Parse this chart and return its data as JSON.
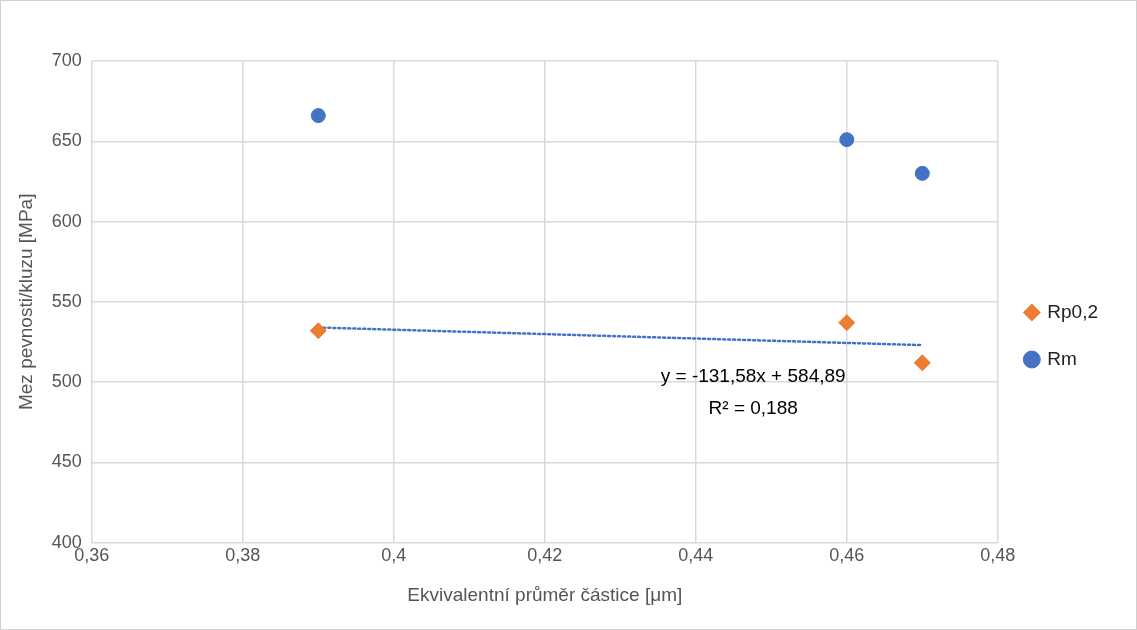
{
  "chart_data": {
    "type": "scatter",
    "xlabel": "Ekvivalentní průměr částice [μm]",
    "ylabel": "Mez pevnosti/kluzu [MPa]",
    "xlim": [
      0.36,
      0.48
    ],
    "xticks": [
      {
        "value": 0.36,
        "label": "0,36"
      },
      {
        "value": 0.38,
        "label": "0,38"
      },
      {
        "value": 0.4,
        "label": "0,4"
      },
      {
        "value": 0.42,
        "label": "0,42"
      },
      {
        "value": 0.44,
        "label": "0,44"
      },
      {
        "value": 0.46,
        "label": "0,46"
      },
      {
        "value": 0.48,
        "label": "0,48"
      }
    ],
    "ylim": [
      400,
      700
    ],
    "yticks": [
      400,
      450,
      500,
      550,
      600,
      650,
      700
    ],
    "grid": true,
    "legend": "right",
    "series": [
      {
        "name": "Rp0,2",
        "color": "#ed7d31",
        "marker": "diamond",
        "x": [
          0.39,
          0.46,
          0.47
        ],
        "values": [
          532,
          537,
          512
        ]
      },
      {
        "name": "Rm",
        "color": "#4472c4",
        "marker": "circle",
        "x": [
          0.39,
          0.46,
          0.47
        ],
        "values": [
          666,
          651,
          630
        ]
      },
      {
        "type": "line",
        "color": "#4472c4",
        "line_style": "dotted",
        "marker": "none",
        "x": [
          0.39,
          0.47
        ],
        "values": [
          534,
          523
        ]
      }
    ],
    "annotations": [
      "y = -131,58x + 584,89",
      "R² = 0,188"
    ]
  }
}
